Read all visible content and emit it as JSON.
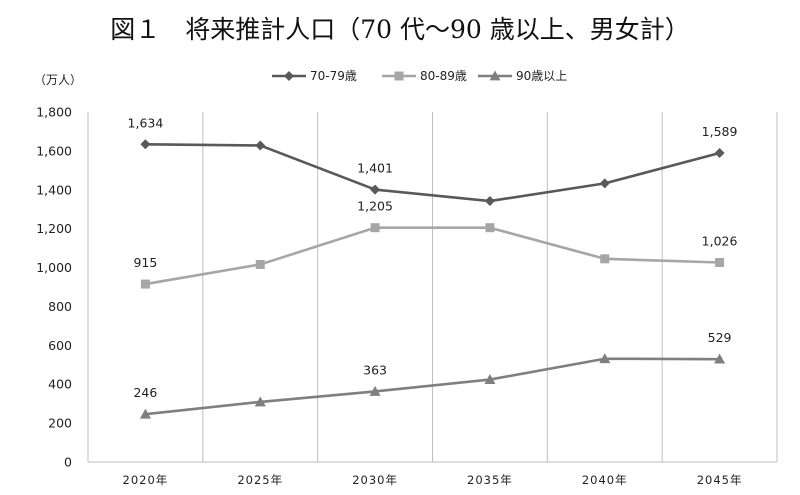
{
  "title": "図１　将来推計人口（70 代〜90 歳以上、男女計）",
  "chart_data": {
    "type": "line",
    "unit": "（万人）",
    "categories": [
      "2020年",
      "2025年",
      "2030年",
      "2035年",
      "2040年",
      "2045年"
    ],
    "ylim": [
      0,
      1800
    ],
    "yticks": [
      0,
      200,
      400,
      600,
      800,
      1000,
      1200,
      1400,
      1600,
      1800
    ],
    "ytick_labels": [
      "0",
      "200",
      "400",
      "600",
      "800",
      "1,000",
      "1,200",
      "1,400",
      "1,600",
      "1,800"
    ],
    "grid": "vertical",
    "legend_position": "top",
    "series": [
      {
        "name": "70-79歳",
        "color": "#595959",
        "marker": "diamond",
        "values": [
          1634,
          1628,
          1401,
          1342,
          1433,
          1589
        ],
        "labels": [
          "1,634",
          null,
          "1,401",
          null,
          null,
          "1,589"
        ]
      },
      {
        "name": "80-89歳",
        "color": "#a6a6a6",
        "marker": "square",
        "values": [
          915,
          1016,
          1205,
          1205,
          1045,
          1026
        ],
        "labels": [
          "915",
          null,
          "1,205",
          null,
          null,
          "1,026"
        ]
      },
      {
        "name": "90歳以上",
        "color": "#7f7f7f",
        "marker": "triangle",
        "values": [
          246,
          309,
          363,
          424,
          531,
          529
        ],
        "labels": [
          "246",
          null,
          "363",
          null,
          null,
          "529"
        ]
      }
    ]
  }
}
